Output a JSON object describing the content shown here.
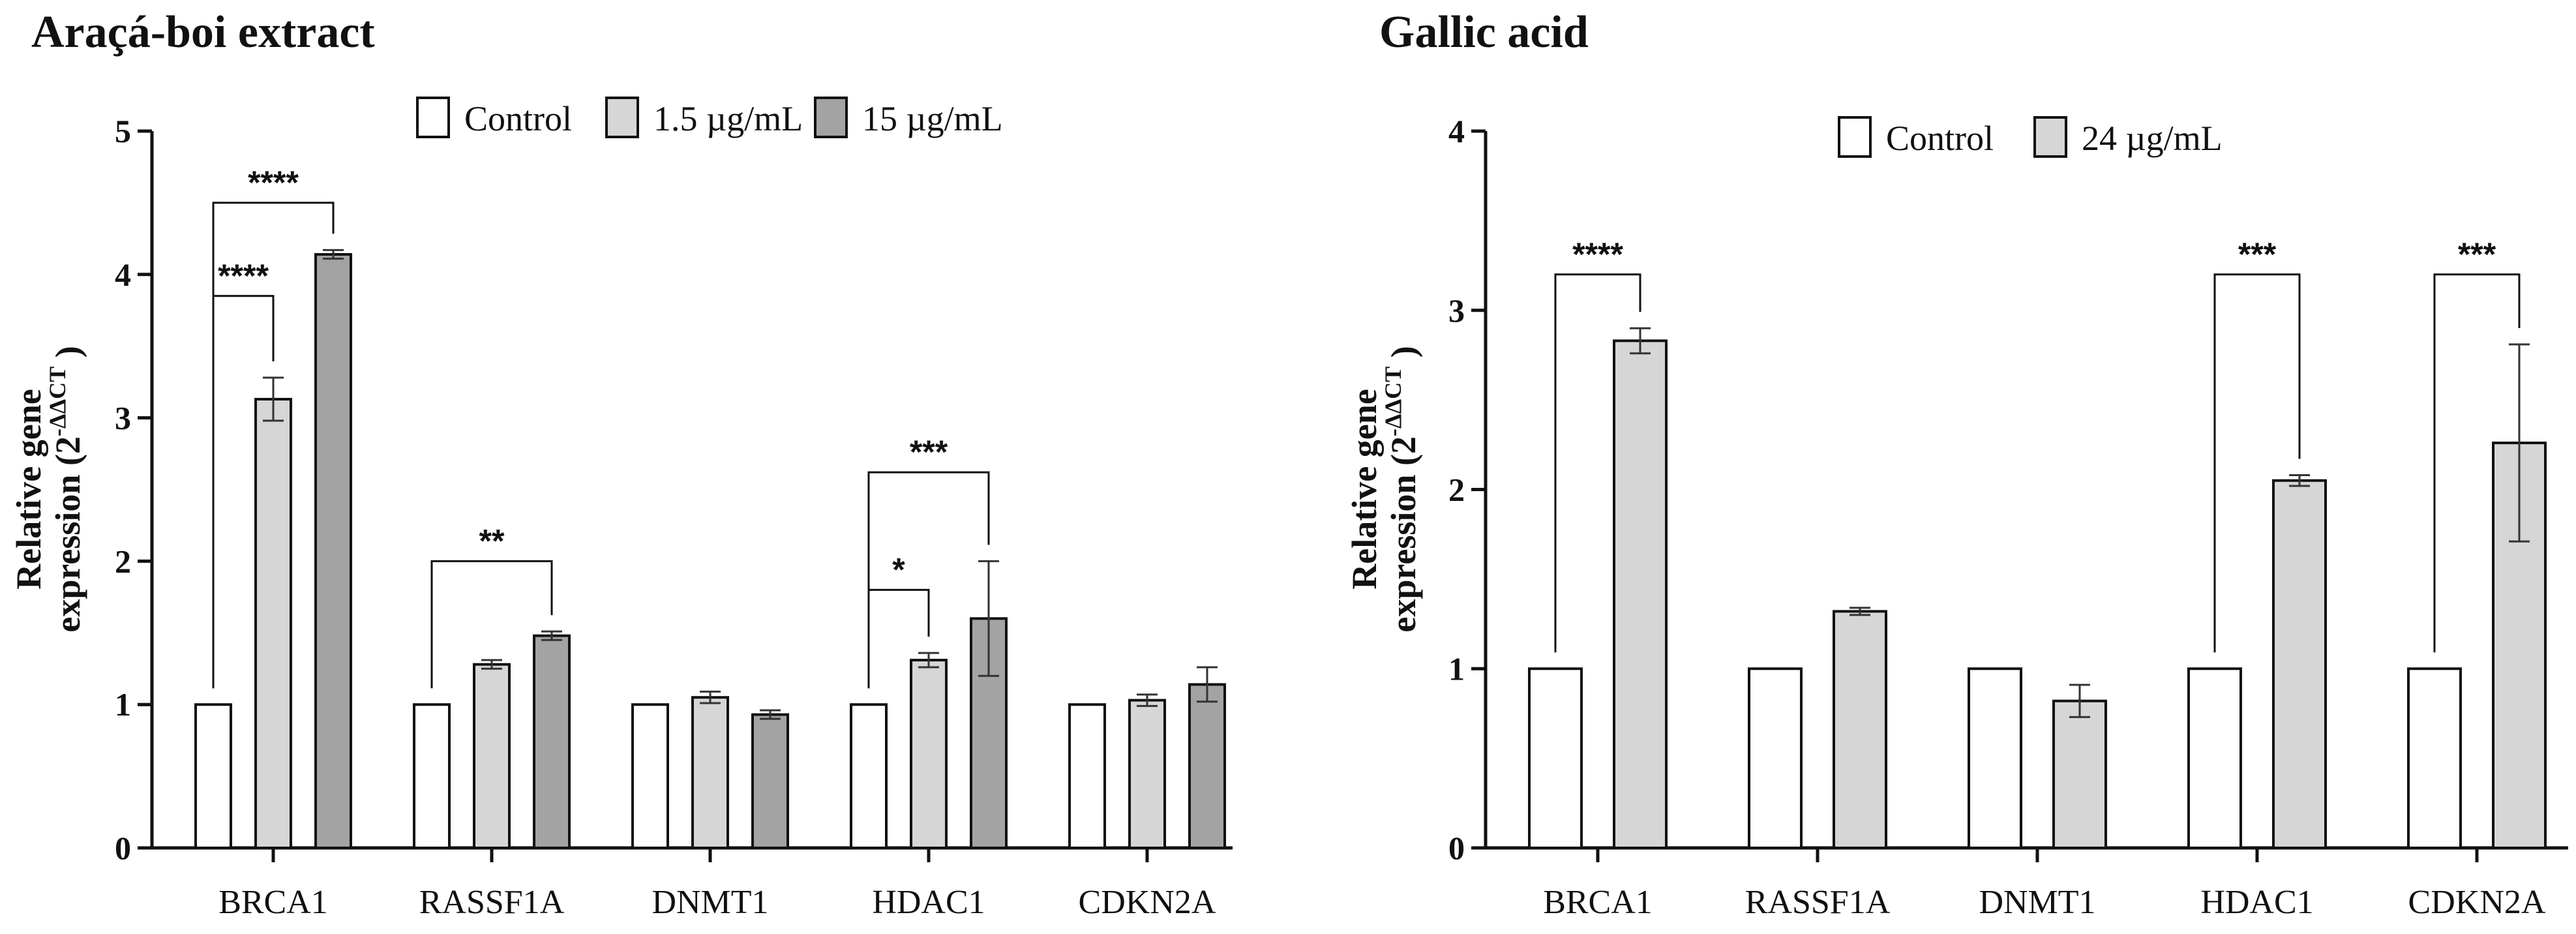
{
  "chart_data": [
    {
      "type": "bar",
      "title": "Araçá-boi extract",
      "ylabel_line1": "Relative gene",
      "ylabel_line2": "expression (2",
      "ylabel_sup": "-ΔΔCT",
      "ylabel_close": ")",
      "ylim": [
        0,
        5
      ],
      "yticks": [
        "0",
        "1",
        "2",
        "3",
        "4",
        "5"
      ],
      "legend_position": "top",
      "categories": [
        "BRCA1",
        "RASSF1A",
        "DNMT1",
        "HDAC1",
        "CDKN2A"
      ],
      "series": [
        {
          "name": "Control",
          "color": "#ffffff",
          "values": [
            1.0,
            1.0,
            1.0,
            1.0,
            1.0
          ],
          "errors": [
            0,
            0,
            0,
            0,
            0
          ]
        },
        {
          "name": "1.5 µg/mL",
          "color": "#d6d6d6",
          "values": [
            3.13,
            1.28,
            1.05,
            1.31,
            1.03
          ],
          "errors": [
            0.15,
            0.03,
            0.04,
            0.05,
            0.04
          ]
        },
        {
          "name": "15 µg/mL",
          "color": "#a3a3a3",
          "values": [
            4.14,
            1.48,
            0.93,
            1.6,
            1.14
          ],
          "errors": [
            0.03,
            0.03,
            0.03,
            0.4,
            0.12
          ]
        }
      ],
      "significance": [
        {
          "label": "****",
          "category": 0,
          "from": 0,
          "to": 2,
          "y": 4.5
        },
        {
          "label": "****",
          "category": 0,
          "from": 0,
          "to": 1,
          "y": 3.85
        },
        {
          "label": "**",
          "category": 1,
          "from": 0,
          "to": 2,
          "y": 2.0
        },
        {
          "label": "***",
          "category": 3,
          "from": 0,
          "to": 2,
          "y": 2.62
        },
        {
          "label": "*",
          "category": 3,
          "from": 0,
          "to": 1,
          "y": 1.8
        }
      ]
    },
    {
      "type": "bar",
      "title": "Gallic acid",
      "ylabel_line1": "Relative gene",
      "ylabel_line2": "expression (2",
      "ylabel_sup": "-ΔΔCT",
      "ylabel_close": ")",
      "ylim": [
        0,
        4
      ],
      "yticks": [
        "0",
        "1",
        "2",
        "3",
        "4"
      ],
      "legend_position": "top",
      "categories": [
        "BRCA1",
        "RASSF1A",
        "DNMT1",
        "HDAC1",
        "CDKN2A"
      ],
      "series": [
        {
          "name": "Control",
          "color": "#ffffff",
          "values": [
            1.0,
            1.0,
            1.0,
            1.0,
            1.0
          ],
          "errors": [
            0,
            0,
            0,
            0,
            0
          ]
        },
        {
          "name": "24 µg/mL",
          "color": "#d6d6d6",
          "values": [
            2.83,
            1.32,
            0.82,
            2.05,
            2.26
          ],
          "errors": [
            0.07,
            0.02,
            0.09,
            0.03,
            0.55
          ]
        }
      ],
      "significance": [
        {
          "label": "****",
          "category": 0,
          "from": 0,
          "to": 1,
          "y": 3.2
        },
        {
          "label": "***",
          "category": 3,
          "from": 0,
          "to": 1,
          "y": 3.2
        },
        {
          "label": "***",
          "category": 4,
          "from": 0,
          "to": 1,
          "y": 3.2
        }
      ]
    }
  ]
}
